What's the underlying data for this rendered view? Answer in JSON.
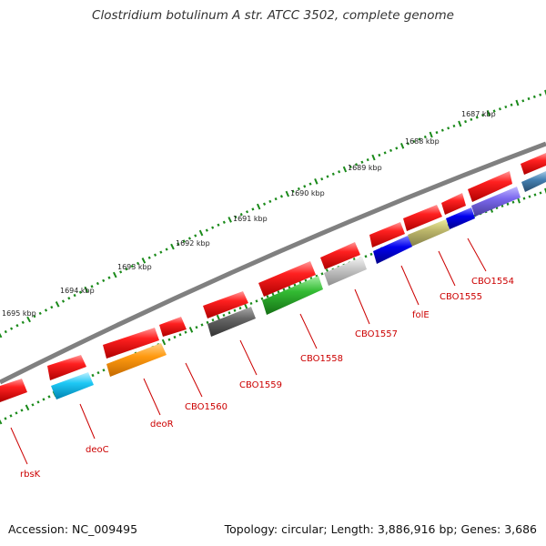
{
  "title": "Clostridium botulinum A str. ATCC 3502, complete genome",
  "accession": "Accession: NC_009495",
  "topology": "Topology: circular; Length: 3,886,916 bp; Genes: 3,686",
  "colors": {
    "backbone": "#808080",
    "ticks": "#1a8a1a",
    "label_red": "#cc0000"
  },
  "ruler": {
    "labels": [
      "1687 kbp",
      "1688 kbp",
      "1689 kbp",
      "1690 kbp",
      "1691 kbp",
      "1692 kbp",
      "1693 kbp",
      "1694 kbp",
      "1695 kbp"
    ]
  },
  "gene_labels": [
    "CBO1554",
    "CBO1555",
    "folE",
    "CBO1557",
    "CBO1558",
    "CBO1559",
    "CBO1560",
    "deoR",
    "deoC",
    "rbsK"
  ],
  "features": {
    "outer_ring_color": "red",
    "inner_ring_colors": [
      "steelblue",
      "slateblue",
      "blue",
      "darkkhaki",
      "blue",
      "silver",
      "green",
      "dimgray",
      "darkorange",
      "deepskyblue"
    ]
  }
}
